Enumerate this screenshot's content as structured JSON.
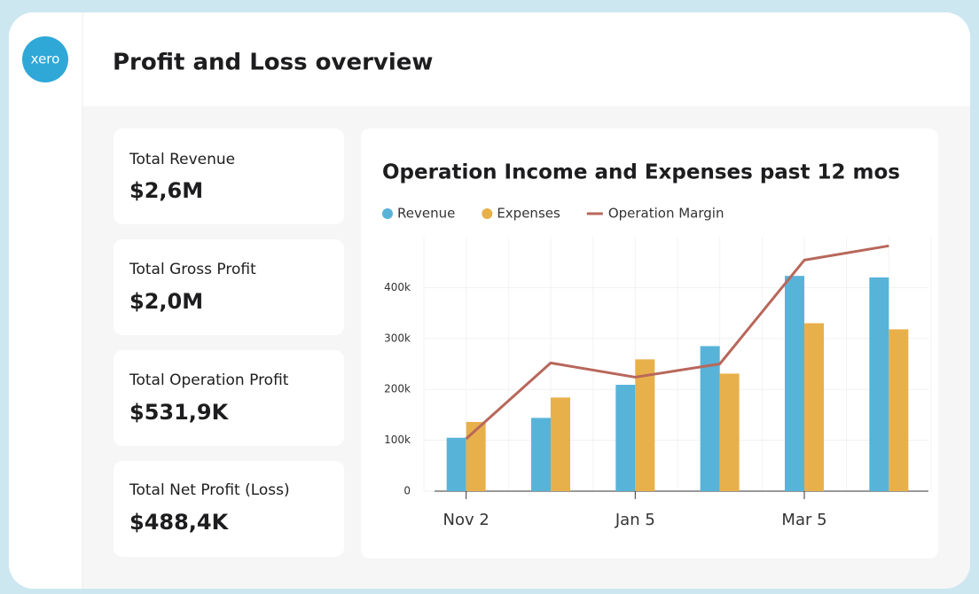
{
  "header": {
    "logo": "xero",
    "title": "Profit and Loss overview"
  },
  "kpis": [
    {
      "label": "Total Revenue",
      "value": "$2,6M"
    },
    {
      "label": "Total Gross Profit",
      "value": "$2,0M"
    },
    {
      "label": "Total Operation Profit",
      "value": "$531,9K"
    },
    {
      "label": "Total Net Profit (Loss)",
      "value": "$488,4K"
    }
  ],
  "chart_data": {
    "type": "bar",
    "title": "Operation Income and Expenses past 12 mos",
    "categories": [
      "Nov 2",
      null,
      "Jan 5",
      null,
      "Mar 5",
      null
    ],
    "series": [
      {
        "name": "Revenue",
        "color": "#58b3d9",
        "values": [
          105000,
          144000,
          209000,
          285000,
          423000,
          420000
        ]
      },
      {
        "name": "Expenses",
        "color": "#e8b04a",
        "values": [
          136000,
          184000,
          259000,
          231000,
          330000,
          318000
        ]
      },
      {
        "name": "Operation Margin",
        "color": "#b8675b",
        "type": "line",
        "values": [
          103000,
          252000,
          224000,
          250000,
          454000,
          482000
        ]
      }
    ],
    "ylim": [
      0,
      500000
    ],
    "yticks": [
      0,
      {
        "value": 100000,
        "label": "100k"
      },
      {
        "value": 200000,
        "label": "200k"
      },
      {
        "value": 300000,
        "label": "300k"
      },
      {
        "value": 400000,
        "label": "400k"
      }
    ]
  }
}
